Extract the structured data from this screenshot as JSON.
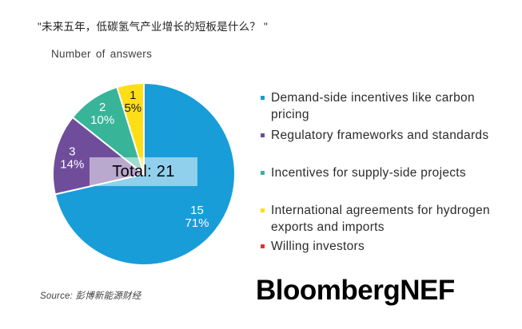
{
  "title": "\"未来五年，低碳氢气产业增长的短板是什么？ \"",
  "subtitle": "Number of answers",
  "chart_data": {
    "type": "pie",
    "title": "Number of answers",
    "total": 21,
    "total_label": "Total: 21",
    "direction": "clockwise",
    "start_angle_deg": 0,
    "legend_position": "right",
    "series": [
      {
        "label": "Demand-side incentives like carbon pricing",
        "value": 15,
        "pct": "71%",
        "color": "#189DD9"
      },
      {
        "label": "Regulatory frameworks and standards",
        "value": 3,
        "pct": "14%",
        "color": "#6F4D9B"
      },
      {
        "label": "Incentives for supply-side projects",
        "value": 2,
        "pct": "10%",
        "color": "#38B598"
      },
      {
        "label": "International agreements for hydrogen exports and imports",
        "value": 1,
        "pct": "5%",
        "color": "#FFDE17"
      },
      {
        "label": "Willing investors",
        "value": 0,
        "pct": "",
        "color": "#E2342A"
      }
    ]
  },
  "source": {
    "text": "Source: 彭博新能源财经"
  },
  "logo": {
    "text": "BloombergNEF"
  }
}
